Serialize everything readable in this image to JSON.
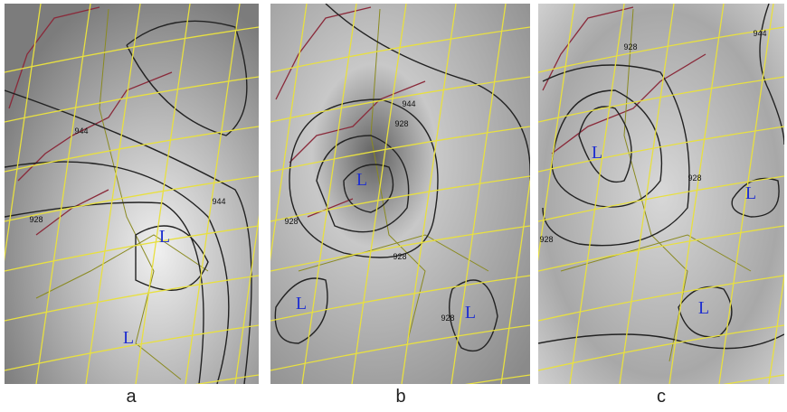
{
  "panels": [
    {
      "label": "a",
      "lows": [
        "L",
        "L"
      ],
      "contour_labels": [
        "944",
        "928",
        "944"
      ]
    },
    {
      "label": "b",
      "lows": [
        "L",
        "L",
        "L"
      ],
      "contour_labels": [
        "944",
        "928",
        "928",
        "928",
        "928"
      ]
    },
    {
      "label": "c",
      "lows": [
        "L",
        "L",
        "L"
      ],
      "contour_labels": [
        "944",
        "928",
        "928",
        "928"
      ]
    }
  ]
}
